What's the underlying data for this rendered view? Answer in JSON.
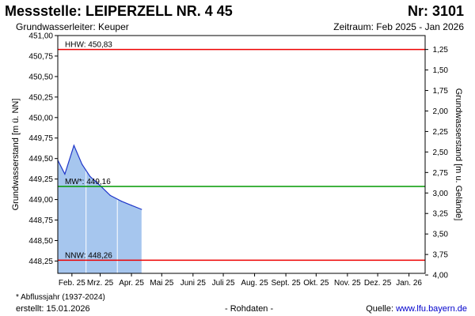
{
  "header": {
    "title": "Messstelle: LEIPERZELL NR. 4 45",
    "number": "Nr: 3101",
    "aquifer": "Grundwasserleiter: Keuper",
    "period": "Zeitraum: Feb 2025 - Jan 2026"
  },
  "footer": {
    "note": "* Abflussjahr (1937-2024)",
    "created": "erstellt:  15.01.2026",
    "raw": "- Rohdaten -",
    "source_prefix": "Quelle: ",
    "source_link": "www.lfu.bayern.de"
  },
  "chart_data": {
    "type": "area",
    "ylabel": "Grundwasserstand [m ü. NN]",
    "y2label": "Grundwasserstand [m u. Gelände]",
    "ylim": [
      448.1,
      451.0
    ],
    "y_ticks": [
      451.0,
      450.75,
      450.5,
      450.25,
      450.0,
      449.75,
      449.5,
      449.25,
      449.0,
      448.75,
      448.5,
      448.25
    ],
    "y_tick_labels": [
      "451,00",
      "450,75",
      "450,50",
      "450,25",
      "450,00",
      "449,75",
      "449,50",
      "449,25",
      "449,00",
      "448,75",
      "448,50",
      "448,25"
    ],
    "y2_ticks": [
      1.25,
      1.5,
      1.75,
      2.0,
      2.25,
      2.5,
      2.75,
      3.0,
      3.25,
      3.5,
      3.75,
      4.0
    ],
    "y2_tick_labels": [
      "1,25",
      "1,50",
      "1,75",
      "2,00",
      "2,25",
      "2,50",
      "2,75",
      "3,00",
      "3,25",
      "3,50",
      "3,75",
      "4,00"
    ],
    "y2_reference": 452.08,
    "x_range": [
      "2025-02-01",
      "2026-01-31"
    ],
    "x_ticks": [
      "2025-02-15",
      "2025-03-15",
      "2025-04-15",
      "2025-05-15",
      "2025-06-15",
      "2025-07-15",
      "2025-08-15",
      "2025-09-15",
      "2025-10-15",
      "2025-11-15",
      "2025-12-15",
      "2026-01-15"
    ],
    "x_tick_labels": [
      "Feb. 25",
      "Mrz. 25",
      "Apr. 25",
      "Mai 25",
      "Juni 25",
      "Juli 25",
      "Aug. 25",
      "Sept. 25",
      "Okt. 25",
      "Nov. 25",
      "Dez. 25",
      "Jan. 26"
    ],
    "month_dividers": [
      "2025-03-01",
      "2025-04-01"
    ],
    "series": [
      {
        "x": [
          "2025-02-01",
          "2025-02-08",
          "2025-02-17",
          "2025-02-25",
          "2025-03-05",
          "2025-03-15",
          "2025-03-25",
          "2025-04-05",
          "2025-04-15",
          "2025-04-25"
        ],
        "y": [
          449.48,
          449.31,
          449.66,
          449.43,
          449.28,
          449.17,
          449.05,
          448.98,
          448.93,
          448.88
        ]
      }
    ],
    "reference_lines": [
      {
        "label": "HHW: 450,83",
        "value": 450.83,
        "color": "#ee0000"
      },
      {
        "label": "MW*: 449,16",
        "value": 449.16,
        "color": "#009900"
      },
      {
        "label": "NNW: 448,26",
        "value": 448.26,
        "color": "#ee0000"
      }
    ],
    "area_color": "#a6c6ee",
    "line_color": "#1f36c9",
    "grid": false,
    "legend": "none"
  }
}
